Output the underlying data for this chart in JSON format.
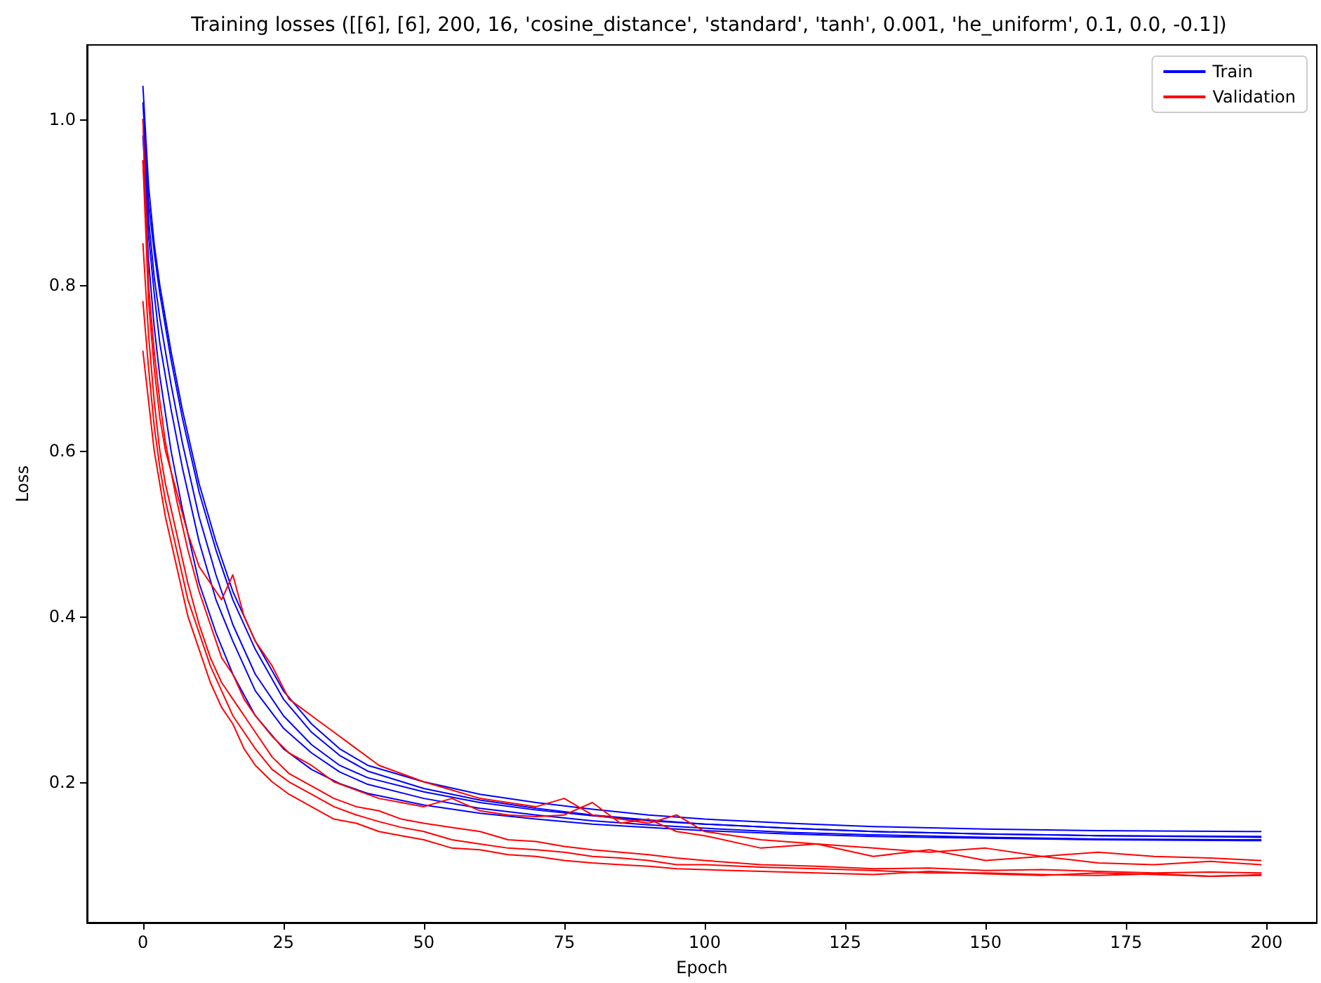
{
  "chart_data": {
    "type": "line",
    "title": "Training losses ([[6], [6], 200, 16, 'cosine_distance', 'standard', 'tanh', 0.001, 'he_uniform', 0.1, 0.0, -0.1])",
    "xlabel": "Epoch",
    "ylabel": "Loss",
    "xlim": [
      -9.95,
      208.95
    ],
    "xticks": [
      0,
      25,
      50,
      75,
      100,
      125,
      150,
      175,
      200
    ],
    "ylim": [
      0.03,
      1.09
    ],
    "yticks": [
      0.2,
      0.4,
      0.6,
      0.8,
      {
        "value": 1,
        "label": "1.0"
      }
    ],
    "grid": false,
    "legend": "top right",
    "marker": "none",
    "line_style": "solid",
    "series": [
      {
        "name": "Train",
        "color": "#0000ff",
        "x": [
          0,
          1,
          2,
          3,
          5,
          7,
          10,
          13,
          16,
          20,
          25,
          30,
          35,
          40,
          50,
          60,
          70,
          80,
          90,
          100,
          115,
          130,
          150,
          170,
          199
        ],
        "values": [
          1.04,
          0.92,
          0.85,
          0.8,
          0.72,
          0.65,
          0.56,
          0.49,
          0.43,
          0.37,
          0.31,
          0.27,
          0.24,
          0.22,
          0.2,
          0.185,
          0.175,
          0.167,
          0.16,
          0.155,
          0.15,
          0.146,
          0.143,
          0.141,
          0.14
        ]
      },
      {
        "color": "#0000ff",
        "x": [
          0,
          1,
          2,
          3,
          5,
          7,
          10,
          13,
          16,
          20,
          25,
          30,
          35,
          40,
          50,
          60,
          70,
          80,
          90,
          100,
          115,
          130,
          150,
          170,
          199
        ],
        "values": [
          1.0,
          0.88,
          0.81,
          0.76,
          0.68,
          0.61,
          0.52,
          0.45,
          0.39,
          0.33,
          0.28,
          0.245,
          0.22,
          0.205,
          0.188,
          0.175,
          0.166,
          0.159,
          0.153,
          0.149,
          0.144,
          0.14,
          0.137,
          0.135,
          0.134
        ]
      },
      {
        "color": "#0000ff",
        "x": [
          0,
          1,
          2,
          3,
          5,
          7,
          10,
          13,
          16,
          20,
          25,
          30,
          35,
          40,
          50,
          60,
          70,
          80,
          90,
          100,
          115,
          130,
          150,
          170,
          199
        ],
        "values": [
          0.98,
          0.86,
          0.79,
          0.73,
          0.65,
          0.58,
          0.49,
          0.42,
          0.37,
          0.31,
          0.265,
          0.235,
          0.212,
          0.197,
          0.18,
          0.168,
          0.16,
          0.153,
          0.148,
          0.144,
          0.139,
          0.136,
          0.133,
          0.131,
          0.13
        ]
      },
      {
        "color": "#0000ff",
        "x": [
          0,
          1,
          2,
          3,
          5,
          7,
          10,
          13,
          16,
          20,
          25,
          30,
          35,
          40,
          50,
          60,
          70,
          80,
          90,
          100,
          115,
          130,
          150,
          170,
          199
        ],
        "values": [
          0.95,
          0.83,
          0.75,
          0.69,
          0.6,
          0.53,
          0.44,
          0.38,
          0.33,
          0.28,
          0.24,
          0.215,
          0.198,
          0.186,
          0.172,
          0.162,
          0.155,
          0.149,
          0.145,
          0.141,
          0.137,
          0.134,
          0.132,
          0.13,
          0.129
        ]
      },
      {
        "color": "#0000ff",
        "x": [
          0,
          1,
          2,
          3,
          5,
          7,
          10,
          13,
          16,
          20,
          25,
          30,
          35,
          40,
          50,
          60,
          70,
          80,
          90,
          100,
          115,
          130,
          150,
          170,
          199
        ],
        "values": [
          1.02,
          0.9,
          0.84,
          0.79,
          0.71,
          0.64,
          0.55,
          0.48,
          0.42,
          0.36,
          0.3,
          0.26,
          0.232,
          0.213,
          0.192,
          0.178,
          0.168,
          0.16,
          0.154,
          0.149,
          0.144,
          0.14,
          0.137,
          0.135,
          0.133
        ]
      },
      {
        "name": "Validation",
        "color": "#ff0000",
        "x": [
          0,
          1,
          2,
          3,
          4,
          6,
          8,
          10,
          12,
          14,
          16,
          18,
          20,
          23,
          26,
          30,
          34,
          38,
          42,
          46,
          50,
          55,
          60,
          65,
          70,
          75,
          80,
          85,
          90,
          95,
          100,
          110,
          120,
          130,
          140,
          150,
          160,
          170,
          180,
          190,
          199
        ],
        "values": [
          0.72,
          0.66,
          0.6,
          0.56,
          0.52,
          0.46,
          0.4,
          0.36,
          0.32,
          0.29,
          0.27,
          0.24,
          0.22,
          0.2,
          0.185,
          0.17,
          0.155,
          0.15,
          0.14,
          0.135,
          0.13,
          0.12,
          0.118,
          0.112,
          0.11,
          0.105,
          0.102,
          0.1,
          0.098,
          0.095,
          0.094,
          0.092,
          0.09,
          0.088,
          0.092,
          0.089,
          0.087,
          0.09,
          0.088,
          0.086,
          0.088
        ]
      },
      {
        "color": "#ff0000",
        "x": [
          0,
          1,
          2,
          3,
          4,
          6,
          8,
          10,
          12,
          14,
          16,
          18,
          20,
          23,
          26,
          30,
          34,
          38,
          42,
          46,
          50,
          55,
          60,
          65,
          70,
          75,
          80,
          85,
          90,
          95,
          100,
          110,
          120,
          130,
          140,
          150,
          160,
          170,
          180,
          190,
          199
        ],
        "values": [
          0.95,
          0.78,
          0.7,
          0.64,
          0.6,
          0.55,
          0.5,
          0.46,
          0.44,
          0.42,
          0.45,
          0.4,
          0.37,
          0.34,
          0.3,
          0.28,
          0.26,
          0.24,
          0.22,
          0.21,
          0.2,
          0.19,
          0.18,
          0.175,
          0.17,
          0.18,
          0.16,
          0.155,
          0.15,
          0.16,
          0.14,
          0.13,
          0.125,
          0.12,
          0.115,
          0.12,
          0.11,
          0.115,
          0.11,
          0.108,
          0.105
        ]
      },
      {
        "color": "#ff0000",
        "x": [
          0,
          1,
          2,
          3,
          4,
          6,
          8,
          10,
          12,
          14,
          16,
          18,
          20,
          23,
          26,
          30,
          34,
          38,
          42,
          46,
          50,
          55,
          60,
          65,
          70,
          75,
          80,
          85,
          90,
          95,
          100,
          110,
          120,
          130,
          140,
          150,
          160,
          170,
          180,
          190,
          199
        ],
        "values": [
          0.85,
          0.74,
          0.66,
          0.6,
          0.56,
          0.5,
          0.44,
          0.39,
          0.35,
          0.32,
          0.3,
          0.28,
          0.26,
          0.23,
          0.21,
          0.195,
          0.18,
          0.17,
          0.165,
          0.155,
          0.15,
          0.145,
          0.14,
          0.13,
          0.128,
          0.122,
          0.118,
          0.115,
          0.112,
          0.108,
          0.105,
          0.1,
          0.098,
          0.095,
          0.096,
          0.093,
          0.094,
          0.092,
          0.09,
          0.091,
          0.09
        ]
      },
      {
        "color": "#ff0000",
        "x": [
          0,
          1,
          2,
          3,
          4,
          6,
          8,
          10,
          12,
          14,
          16,
          18,
          20,
          23,
          26,
          30,
          34,
          38,
          42,
          46,
          50,
          55,
          60,
          65,
          70,
          75,
          80,
          85,
          90,
          95,
          100,
          110,
          120,
          130,
          140,
          150,
          160,
          170,
          180,
          190,
          199
        ],
        "values": [
          1.0,
          0.8,
          0.72,
          0.66,
          0.61,
          0.54,
          0.48,
          0.43,
          0.39,
          0.35,
          0.33,
          0.3,
          0.28,
          0.255,
          0.235,
          0.22,
          0.2,
          0.19,
          0.18,
          0.175,
          0.17,
          0.18,
          0.165,
          0.16,
          0.158,
          0.16,
          0.175,
          0.15,
          0.155,
          0.14,
          0.135,
          0.12,
          0.125,
          0.11,
          0.118,
          0.105,
          0.11,
          0.102,
          0.1,
          0.104,
          0.1
        ]
      },
      {
        "color": "#ff0000",
        "x": [
          0,
          1,
          2,
          3,
          4,
          6,
          8,
          10,
          12,
          14,
          16,
          18,
          20,
          23,
          26,
          30,
          34,
          38,
          42,
          46,
          50,
          55,
          60,
          65,
          70,
          75,
          80,
          85,
          90,
          95,
          100,
          110,
          120,
          130,
          140,
          150,
          160,
          170,
          180,
          190,
          199
        ],
        "values": [
          0.78,
          0.7,
          0.63,
          0.58,
          0.54,
          0.48,
          0.42,
          0.38,
          0.34,
          0.31,
          0.28,
          0.26,
          0.24,
          0.215,
          0.2,
          0.185,
          0.17,
          0.16,
          0.152,
          0.145,
          0.14,
          0.13,
          0.125,
          0.12,
          0.118,
          0.115,
          0.11,
          0.108,
          0.105,
          0.1,
          0.1,
          0.097,
          0.095,
          0.093,
          0.09,
          0.09,
          0.088,
          0.087,
          0.089,
          0.086,
          0.087
        ]
      }
    ]
  }
}
